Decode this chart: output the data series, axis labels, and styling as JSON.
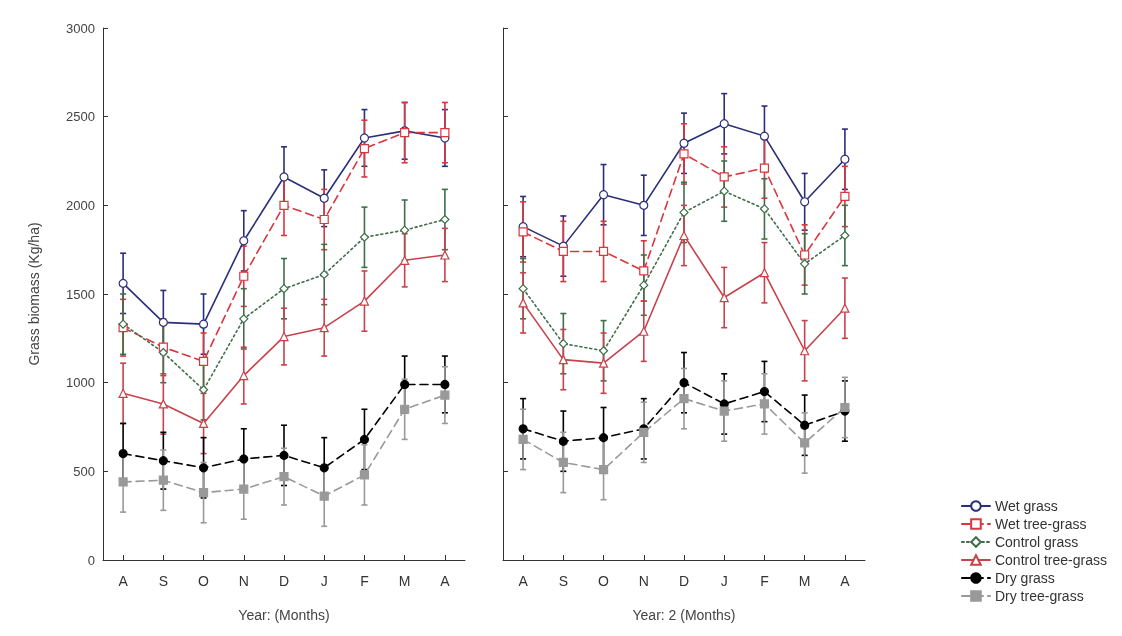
{
  "chart_data": [
    {
      "type": "line",
      "xlabel": "Year: (Months)",
      "ylabel": "Grass biomass (Kg/ha)",
      "categories": [
        "A",
        "S",
        "O",
        "N",
        "D",
        "J",
        "F",
        "M",
        "A"
      ],
      "ylim": [
        0,
        3000
      ],
      "yticks": [
        0,
        500,
        1000,
        1500,
        2000,
        2500,
        3000
      ],
      "grid": false,
      "legend": false,
      "series": [
        {
          "color": "#2b2f7a",
          "marker": "circle",
          "line_style": "solid",
          "values": [
            1560,
            1340,
            1330,
            1800,
            2160,
            2040,
            2380,
            2420,
            2380
          ],
          "errors": [
            170,
            180,
            170,
            170,
            170,
            160,
            160,
            160,
            160
          ]
        },
        {
          "color": "#d9363e",
          "marker": "square",
          "line_style": "dashed",
          "values": [
            1310,
            1200,
            1120,
            1600,
            2000,
            1920,
            2320,
            2410,
            2410
          ],
          "errors": [
            160,
            160,
            160,
            170,
            170,
            170,
            160,
            170,
            170
          ]
        },
        {
          "color": "#3f6e4a",
          "marker": "diamond",
          "line_style": "dotted",
          "values": [
            1330,
            1170,
            960,
            1360,
            1530,
            1610,
            1820,
            1860,
            1920
          ],
          "errors": [
            170,
            170,
            170,
            170,
            170,
            170,
            170,
            170,
            170
          ]
        },
        {
          "color": "#c8414b",
          "marker": "triangle",
          "line_style": "solid",
          "values": [
            940,
            880,
            770,
            1040,
            1260,
            1310,
            1460,
            1690,
            1720
          ],
          "errors": [
            170,
            170,
            170,
            160,
            160,
            160,
            170,
            150,
            150
          ]
        },
        {
          "color": "#000000",
          "marker": "circle",
          "line_style": "dashed",
          "values": [
            600,
            560,
            520,
            570,
            590,
            520,
            680,
            990,
            990
          ],
          "errors": [
            170,
            160,
            170,
            170,
            170,
            170,
            170,
            160,
            160
          ]
        },
        {
          "color": "#999999",
          "marker": "square",
          "line_style": "dashed",
          "values": [
            440,
            450,
            380,
            400,
            470,
            360,
            480,
            850,
            930
          ],
          "errors": [
            170,
            170,
            170,
            170,
            160,
            170,
            170,
            170,
            160
          ]
        }
      ]
    },
    {
      "type": "line",
      "xlabel": "Year: 2 (Months)",
      "categories": [
        "A",
        "S",
        "O",
        "N",
        "D",
        "J",
        "F",
        "M",
        "A"
      ],
      "ylim": [
        0,
        3000
      ],
      "yticks": [
        0,
        500,
        1000,
        1500,
        2000,
        2500,
        3000
      ],
      "tick_labels": "x",
      "grid": false,
      "legend": "bottom right",
      "series": [
        {
          "name": "Wet grass",
          "color": "#2b2f7a",
          "marker": "circle",
          "line_style": "solid",
          "values": [
            1880,
            1770,
            2060,
            2000,
            2350,
            2460,
            2390,
            2020,
            2260
          ],
          "errors": [
            170,
            170,
            170,
            170,
            170,
            170,
            170,
            160,
            170
          ]
        },
        {
          "name": "Wet tree-grass",
          "color": "#d9363e",
          "marker": "square",
          "line_style": "dashed",
          "values": [
            1850,
            1740,
            1740,
            1630,
            2290,
            2160,
            2210,
            1720,
            2050
          ],
          "errors": [
            170,
            170,
            170,
            170,
            170,
            170,
            170,
            170,
            170
          ]
        },
        {
          "name": "Control grass",
          "color": "#3f6e4a",
          "marker": "diamond",
          "line_style": "dotted",
          "values": [
            1530,
            1220,
            1180,
            1550,
            1960,
            2080,
            1980,
            1670,
            1830
          ],
          "errors": [
            170,
            170,
            170,
            170,
            170,
            170,
            170,
            170,
            170
          ]
        },
        {
          "name": "Control tree-grass",
          "color": "#c8414b",
          "marker": "triangle",
          "line_style": "solid",
          "values": [
            1450,
            1130,
            1110,
            1290,
            1830,
            1480,
            1620,
            1180,
            1420
          ],
          "errors": [
            170,
            170,
            170,
            170,
            170,
            170,
            170,
            170,
            170
          ]
        },
        {
          "name": "Dry grass",
          "color": "#000000",
          "marker": "circle",
          "line_style": "dashed",
          "values": [
            740,
            670,
            690,
            740,
            1000,
            880,
            950,
            760,
            840
          ],
          "errors": [
            170,
            170,
            170,
            170,
            170,
            170,
            170,
            170,
            170
          ]
        },
        {
          "name": "Dry tree-grass",
          "color": "#999999",
          "marker": "square",
          "line_style": "dashed",
          "values": [
            680,
            550,
            510,
            720,
            910,
            840,
            880,
            660,
            860
          ],
          "errors": [
            170,
            170,
            170,
            170,
            170,
            170,
            170,
            170,
            170
          ]
        }
      ]
    }
  ]
}
